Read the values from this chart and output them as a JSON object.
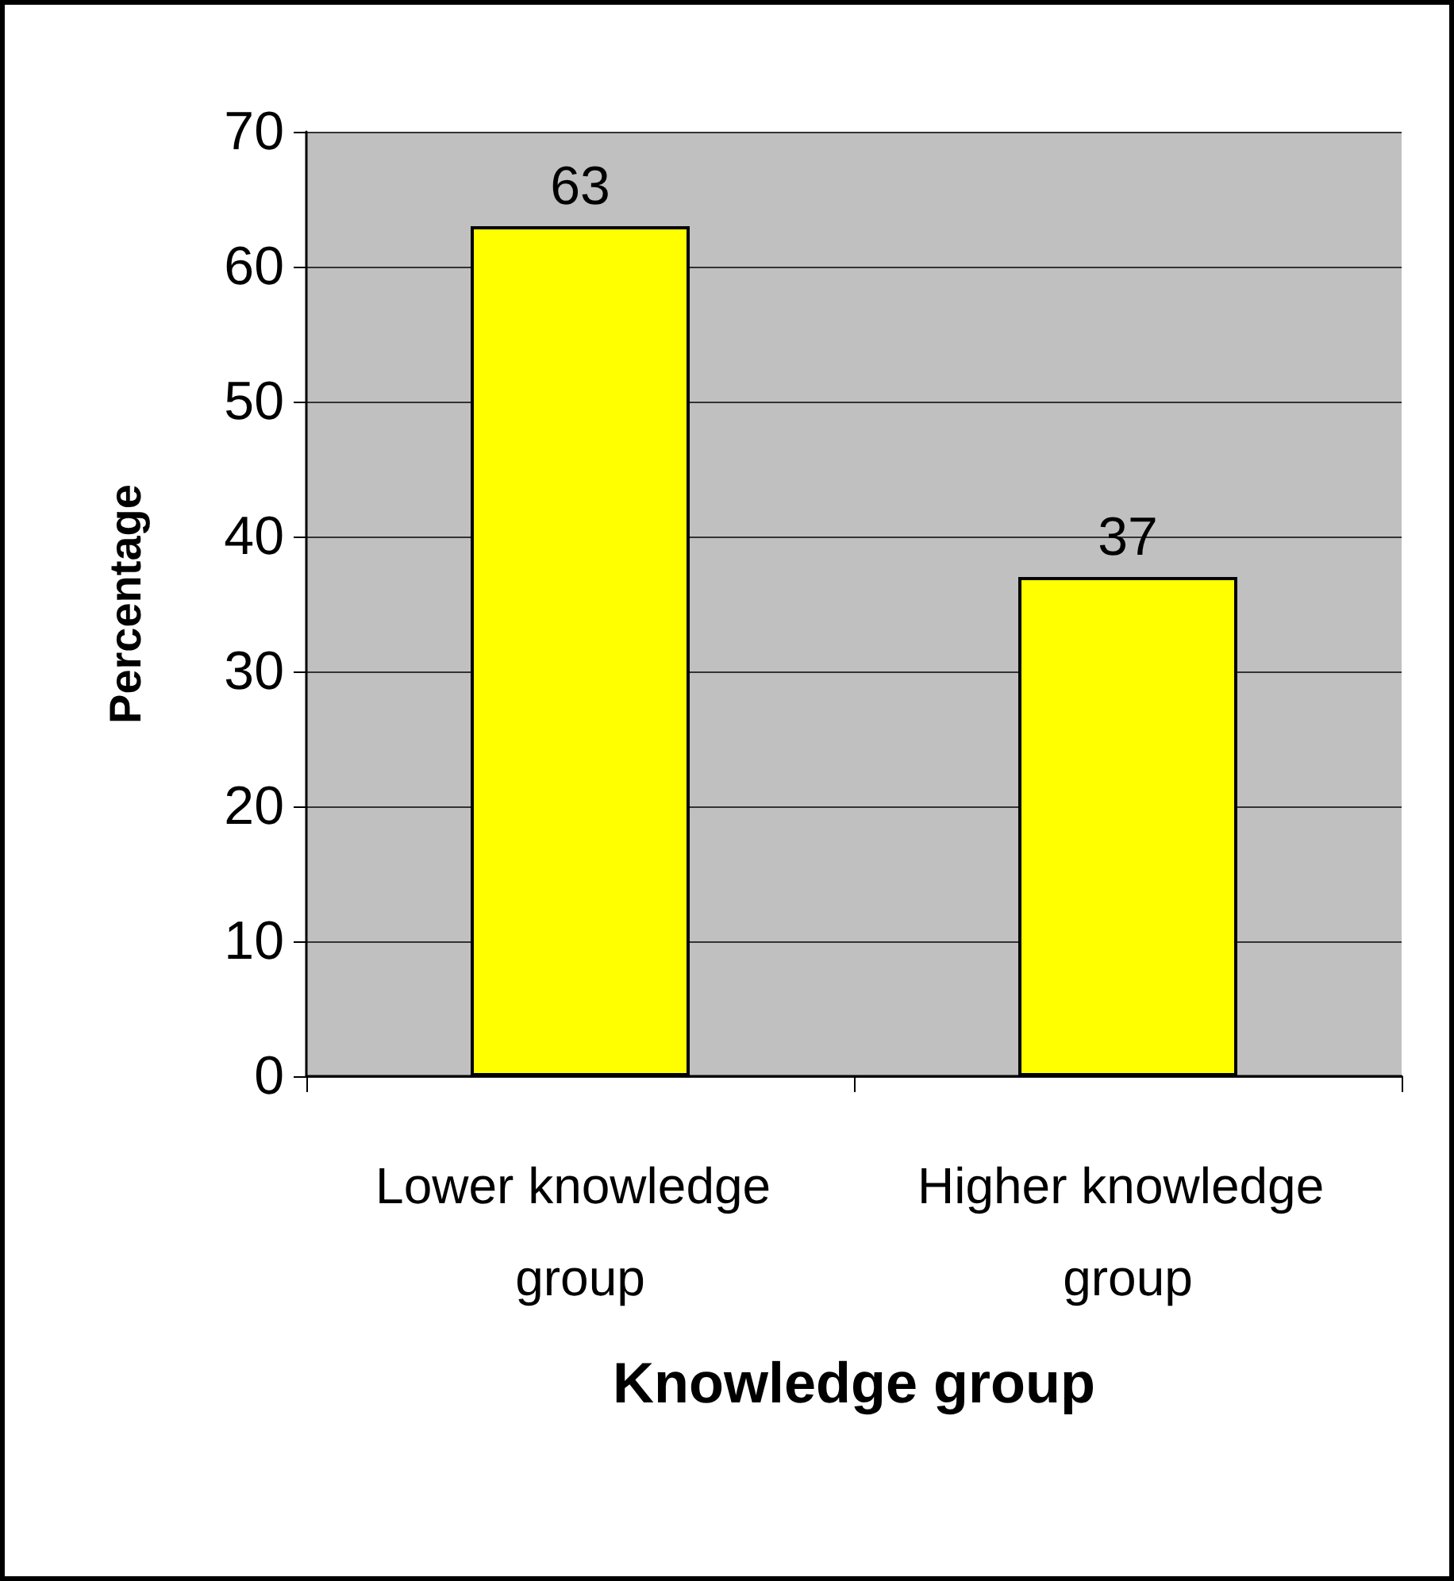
{
  "chart_data": {
    "type": "bar",
    "xlabel": "Knowledge group",
    "ylabel": "Percentage",
    "categories": [
      "Lower knowledge group",
      "Higher knowledge group"
    ],
    "values": [
      63,
      37
    ],
    "color": "#ffff00",
    "ylim": [
      0,
      70
    ],
    "yticks": [
      0,
      10,
      20,
      30,
      40,
      50,
      60,
      70
    ],
    "grid": "y",
    "data_labels": true
  }
}
